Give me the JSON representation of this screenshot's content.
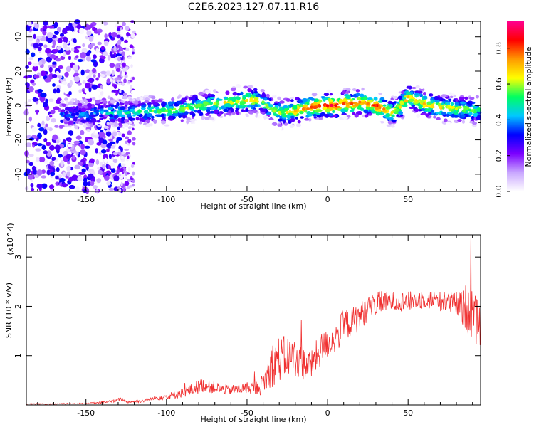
{
  "title": "C2E6.2023.127.07.11.R16",
  "chart_data": [
    {
      "type": "heatmap",
      "name": "spectrogram",
      "xlabel": "Height of straight line (km)",
      "ylabel": "Frequency (Hz)",
      "xlim": [
        -187,
        95
      ],
      "ylim": [
        -50,
        49
      ],
      "xticks": [
        -150,
        -100,
        -50,
        0,
        50
      ],
      "yticks": [
        -40,
        -20,
        0,
        20,
        40
      ],
      "colorbar": {
        "label": "Normalized spectral amplitude",
        "range": [
          0.0,
          0.95
        ],
        "ticks": [
          0.0,
          0.2,
          0.4,
          0.6,
          0.8
        ],
        "colormap": [
          "#ffffff",
          "#c9a7ff",
          "#7b00ff",
          "#0000ff",
          "#00c8ff",
          "#00ff60",
          "#ffff00",
          "#ff9900",
          "#ff0000",
          "#ff0090"
        ]
      },
      "ridge": {
        "x": [
          -165,
          -150,
          -140,
          -130,
          -120,
          -110,
          -100,
          -90,
          -80,
          -70,
          -60,
          -50,
          -45,
          -40,
          -35,
          -30,
          -25,
          -20,
          -15,
          -10,
          -5,
          0,
          5,
          10,
          15,
          20,
          25,
          30,
          35,
          40,
          45,
          50,
          55,
          60,
          65,
          70,
          75,
          80,
          85,
          90,
          94
        ],
        "y": [
          -5,
          -5,
          -4,
          -4,
          -4,
          -3,
          -3,
          -2,
          0,
          1,
          2,
          3,
          3,
          2,
          -2,
          -4,
          -4,
          -3,
          -2,
          -1,
          0,
          0,
          0,
          1,
          1,
          2,
          1,
          0,
          -2,
          -4,
          -1,
          5,
          3,
          1,
          0,
          -1,
          -1,
          -2,
          -2,
          -3,
          -2
        ],
        "amplitude": [
          0.35,
          0.4,
          0.45,
          0.5,
          0.5,
          0.55,
          0.6,
          0.6,
          0.6,
          0.65,
          0.65,
          0.7,
          0.7,
          0.6,
          0.6,
          0.65,
          0.7,
          0.75,
          0.8,
          0.85,
          0.85,
          0.9,
          0.9,
          0.85,
          0.85,
          0.8,
          0.8,
          0.85,
          0.8,
          0.7,
          0.7,
          0.75,
          0.7,
          0.75,
          0.7,
          0.7,
          0.65,
          0.65,
          0.6,
          0.6,
          0.55
        ]
      }
    },
    {
      "type": "line",
      "name": "snr",
      "xlabel": "Height of straight line (km)",
      "ylabel": "SNR (10 * v/v)",
      "y_scale_label": "(x10^4)",
      "xlim": [
        -187,
        95
      ],
      "ylim": [
        0,
        3.45
      ],
      "xticks": [
        -150,
        -100,
        -50,
        0,
        50
      ],
      "yticks": [
        1,
        2,
        3
      ],
      "color": "#f03030",
      "series": [
        {
          "name": "SNR",
          "x": [
            -187,
            -170,
            -150,
            -140,
            -132,
            -128,
            -124,
            -115,
            -105,
            -95,
            -85,
            -78,
            -70,
            -60,
            -50,
            -42,
            -38,
            -33,
            -28,
            -22,
            -16,
            -10,
            -5,
            0,
            5,
            10,
            15,
            20,
            25,
            30,
            40,
            50,
            60,
            70,
            80,
            85,
            88,
            90,
            92,
            95
          ],
          "y": [
            0.02,
            0.02,
            0.03,
            0.05,
            0.08,
            0.12,
            0.06,
            0.08,
            0.15,
            0.2,
            0.3,
            0.4,
            0.35,
            0.3,
            0.35,
            0.35,
            0.55,
            0.9,
            0.95,
            1.0,
            0.85,
            0.8,
            1.1,
            1.25,
            1.35,
            1.6,
            1.7,
            1.8,
            1.95,
            2.05,
            2.1,
            2.1,
            2.15,
            2.1,
            2.05,
            1.95,
            2.1,
            1.9,
            1.7,
            1.6
          ],
          "noise": [
            0.01,
            0.01,
            0.01,
            0.02,
            0.03,
            0.04,
            0.02,
            0.03,
            0.05,
            0.08,
            0.12,
            0.15,
            0.12,
            0.1,
            0.12,
            0.15,
            0.3,
            0.5,
            0.45,
            0.4,
            0.35,
            0.3,
            0.35,
            0.3,
            0.3,
            0.35,
            0.3,
            0.3,
            0.25,
            0.25,
            0.2,
            0.2,
            0.2,
            0.2,
            0.25,
            0.4,
            0.7,
            0.6,
            0.5,
            0.4
          ]
        }
      ]
    }
  ]
}
